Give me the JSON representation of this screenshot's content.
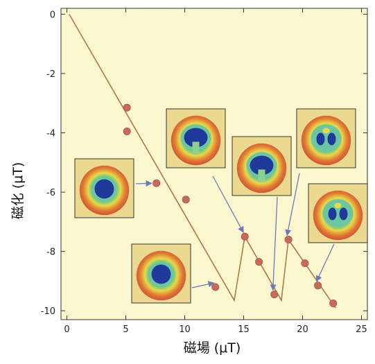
{
  "chart_data": {
    "type": "scatter",
    "xlabel": "磁場 (μT)",
    "ylabel": "磁化 (μT)",
    "xlim": [
      -0.5,
      25.5
    ],
    "ylim": [
      -10.3,
      0.2
    ],
    "x_ticks": [
      0,
      5,
      10,
      15,
      20,
      25
    ],
    "y_ticks": [
      0,
      -2,
      -4,
      -6,
      -8,
      -10
    ],
    "grid": false,
    "plot_background": "#fbf7cf",
    "series": [
      {
        "kind": "points",
        "color": "#c66a5c",
        "points": [
          {
            "x": 5.1,
            "y": -3.15
          },
          {
            "x": 5.1,
            "y": -3.95
          },
          {
            "x": 7.6,
            "y": -5.7
          },
          {
            "x": 10.1,
            "y": -6.25
          },
          {
            "x": 12.6,
            "y": -9.2
          },
          {
            "x": 15.1,
            "y": -7.5
          },
          {
            "x": 16.3,
            "y": -8.35
          },
          {
            "x": 17.6,
            "y": -9.45
          },
          {
            "x": 18.8,
            "y": -7.6
          },
          {
            "x": 20.2,
            "y": -8.4
          },
          {
            "x": 21.3,
            "y": -9.15
          },
          {
            "x": 22.6,
            "y": -9.75
          }
        ]
      },
      {
        "kind": "line",
        "color": "#b3744a",
        "points": [
          {
            "x": 0.2,
            "y": 0.0
          },
          {
            "x": 14.2,
            "y": -9.65
          },
          {
            "x": 15.1,
            "y": -7.5
          },
          {
            "x": 18.2,
            "y": -9.65
          },
          {
            "x": 18.8,
            "y": -7.6
          },
          {
            "x": 22.8,
            "y": -9.9
          }
        ]
      }
    ],
    "insets": [
      {
        "name": "vortex-image-1",
        "anchor": {
          "x": 7.6,
          "y": -5.7
        },
        "core": "single"
      },
      {
        "name": "vortex-image-2",
        "anchor": {
          "x": 12.6,
          "y": -9.2
        },
        "core": "single"
      },
      {
        "name": "vortex-image-3",
        "anchor": {
          "x": 15.1,
          "y": -7.5
        },
        "core": "horseshoe"
      },
      {
        "name": "vortex-image-4",
        "anchor": {
          "x": 17.6,
          "y": -9.45
        },
        "core": "horseshoe"
      },
      {
        "name": "vortex-image-5",
        "anchor": {
          "x": 18.8,
          "y": -7.6
        },
        "core": "multi"
      },
      {
        "name": "vortex-image-6",
        "anchor": {
          "x": 21.3,
          "y": -9.15
        },
        "core": "multi"
      }
    ],
    "arrow_color": "#6f78b8"
  }
}
